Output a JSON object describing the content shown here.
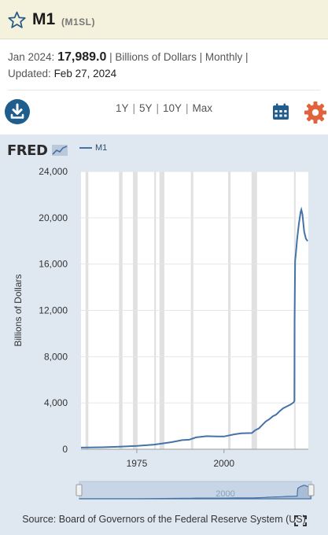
{
  "header": {
    "title": "M1",
    "series_id": "(M1SL)",
    "star_icon": "star-outline-icon"
  },
  "meta": {
    "period_label": "Jan 2024:",
    "value": "17,989.0",
    "units_line": "| Billions of Dollars | Monthly |",
    "updated_label": "Updated:",
    "updated_date": "Feb 27, 2024"
  },
  "toolbar": {
    "download_icon": "download-icon",
    "ranges": [
      "1Y",
      "5Y",
      "10Y",
      "Max"
    ],
    "calendar_icon": "calendar-icon",
    "settings_icon": "gear-icon"
  },
  "chart": {
    "brand": "FRED",
    "legend_label": "M1",
    "source": "Source: Board of Governors of the Federal Reserve System (US)",
    "navigator_label": "2000"
  },
  "colors": {
    "accent": "#4572a7",
    "brand_blue": "#1f5d8c",
    "gear": "#e0633c",
    "panel": "#dfe8f1"
  },
  "chart_data": {
    "type": "line",
    "title": "",
    "xlabel": "",
    "ylabel": "Billions of Dollars",
    "ylim": [
      0,
      24000
    ],
    "y_ticks": [
      0,
      4000,
      8000,
      12000,
      16000,
      20000,
      24000
    ],
    "y_tick_labels": [
      "0",
      "4,000",
      "8,000",
      "12,000",
      "16,000",
      "20,000",
      "24,000"
    ],
    "x_ticks": [
      1975,
      2000
    ],
    "x_tick_labels": [
      "1975",
      "2000"
    ],
    "xlim": [
      1959,
      2024.2
    ],
    "recessions": [
      [
        1960.3,
        1961.1
      ],
      [
        1969.9,
        1970.9
      ],
      [
        1973.9,
        1975.2
      ],
      [
        1980.0,
        1980.5
      ],
      [
        1981.5,
        1982.9
      ],
      [
        1990.5,
        1991.2
      ],
      [
        2001.2,
        2001.9
      ],
      [
        2007.9,
        2009.5
      ],
      [
        2020.1,
        2020.3
      ]
    ],
    "series": [
      {
        "name": "M1",
        "x": [
          1959,
          1965,
          1970,
          1975,
          1980,
          1985,
          1988,
          1990,
          1992,
          1995,
          1998,
          2000,
          2003,
          2005,
          2008,
          2009,
          2010,
          2011,
          2012,
          2013,
          2014,
          2015,
          2016,
          2017,
          2018,
          2019,
          2020.0,
          2020.2,
          2020.25,
          2020.4,
          2020.6,
          2021.0,
          2021.5,
          2022.0,
          2022.2,
          2022.5,
          2023.0,
          2023.5,
          2024.0
        ],
        "y": [
          140,
          170,
          215,
          290,
          400,
          610,
          790,
          820,
          1030,
          1130,
          1100,
          1100,
          1290,
          1380,
          1400,
          1650,
          1800,
          2100,
          2400,
          2600,
          2850,
          3000,
          3300,
          3550,
          3700,
          3850,
          4050,
          4200,
          11000,
          16300,
          16800,
          18200,
          19500,
          20500,
          20700,
          20300,
          18800,
          18200,
          17989
        ]
      }
    ],
    "legend_position": "top-left",
    "grid": "horizontal"
  }
}
